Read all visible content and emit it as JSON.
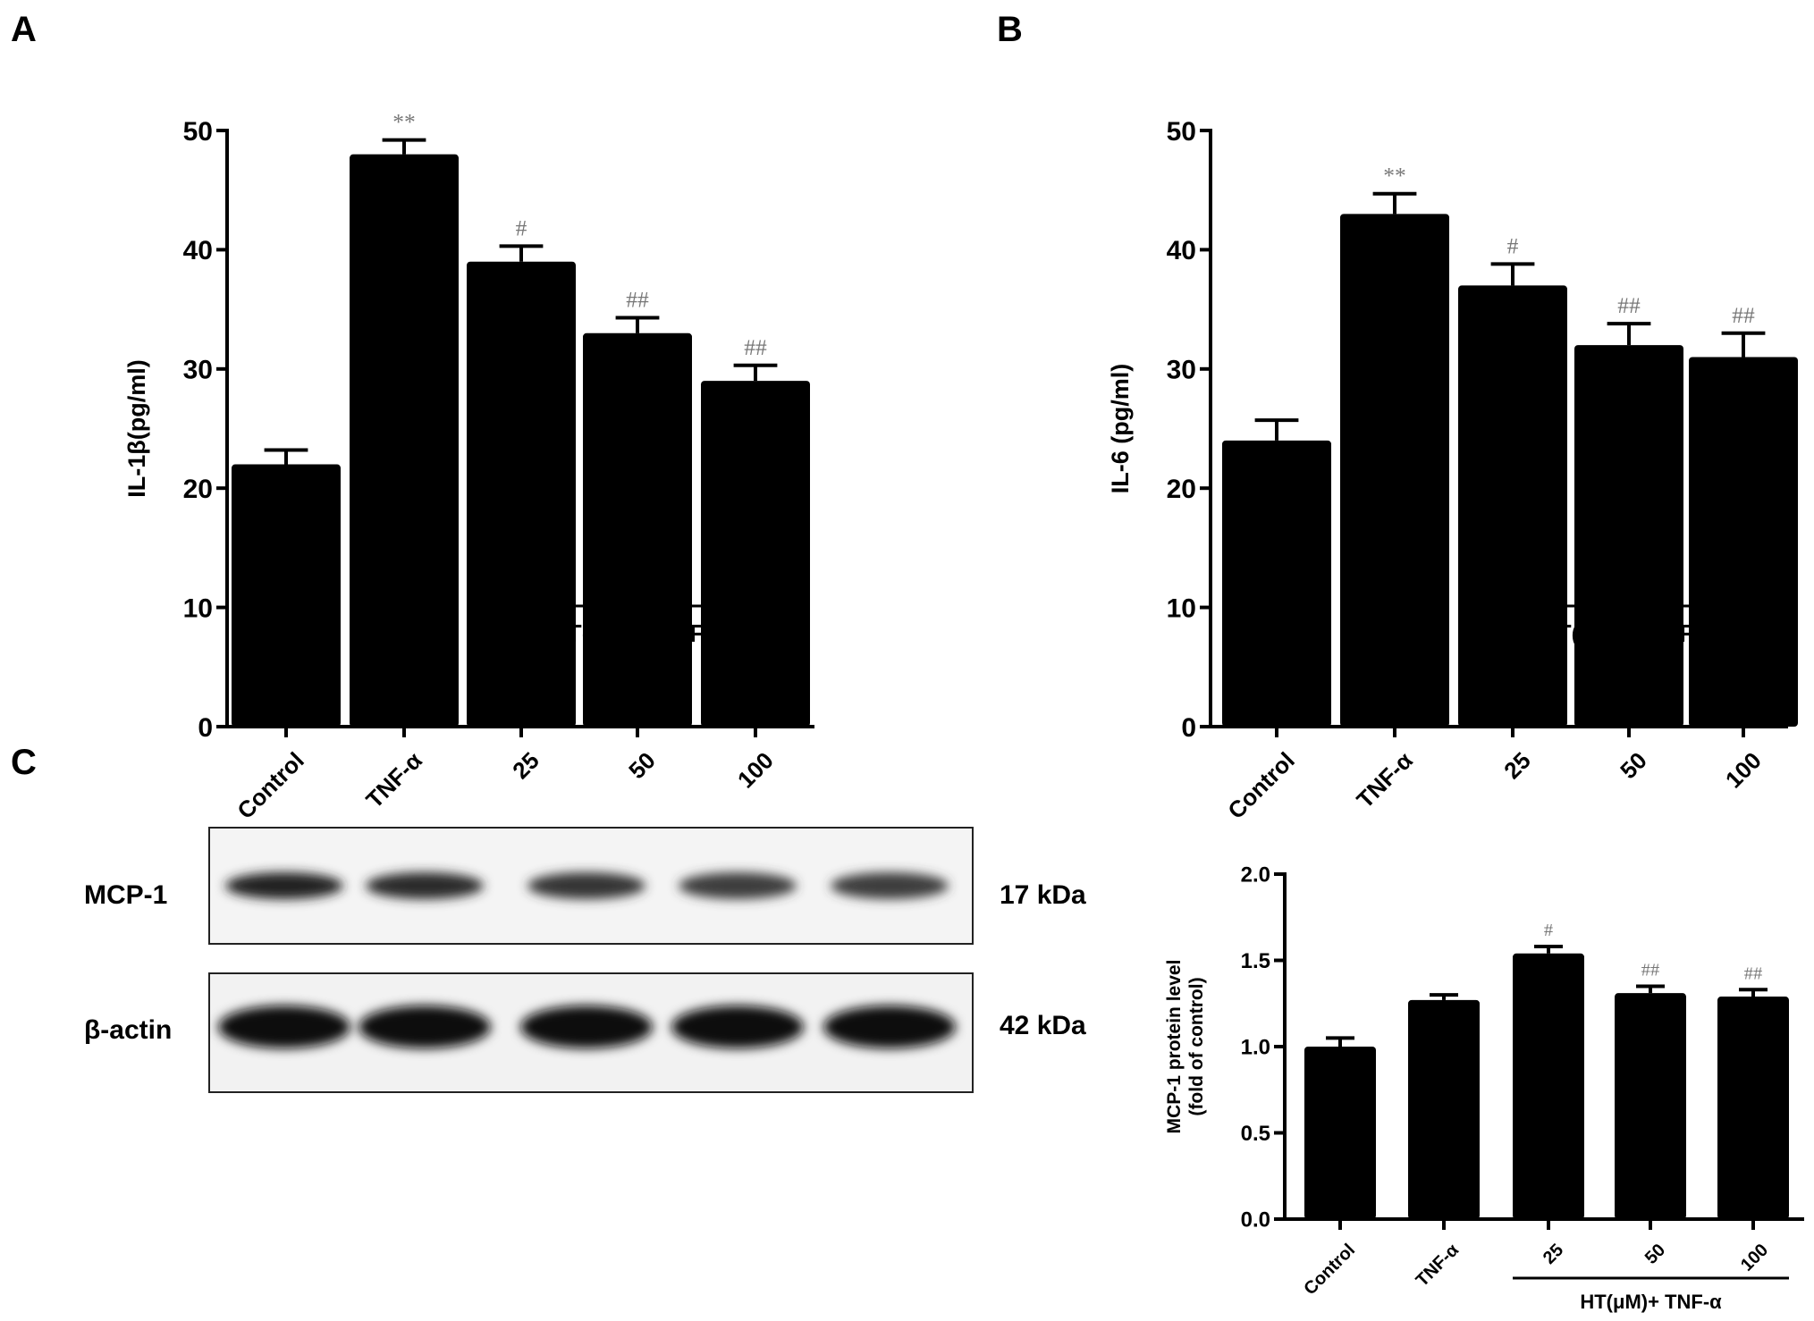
{
  "panels": {
    "a": "A",
    "b": "B",
    "c": "C"
  },
  "blot": {
    "rows": [
      {
        "label": "MCP-1",
        "size": "17 kDa"
      },
      {
        "label": "β-actin",
        "size": "42 kDa"
      }
    ],
    "mcp1_band_intensity": [
      0.95,
      0.9,
      0.8,
      0.75,
      0.75
    ]
  },
  "chart_data": [
    {
      "type": "bar",
      "ylabel": "IL-1β(pg/ml)",
      "categories": [
        "Control",
        "TNF-α",
        "25",
        "50",
        "100"
      ],
      "group_label": "HT(μM)+ TNF-α",
      "values": [
        22,
        48,
        39,
        33,
        29
      ],
      "errors": [
        1.2,
        1.2,
        1.3,
        1.3,
        1.3
      ],
      "annotations": [
        "",
        "**",
        "#",
        "##",
        "##"
      ],
      "ylim": [
        0,
        50
      ],
      "yticks": [
        "0",
        "10",
        "20",
        "30",
        "40",
        "50"
      ],
      "bar_color": "#000000",
      "annotation_color": "#777777"
    },
    {
      "type": "bar",
      "ylabel": "IL-6 (pg/ml)",
      "categories": [
        "Control",
        "TNF-α",
        "25",
        "50",
        "100"
      ],
      "group_label": "HT(μM)+ TNF-α",
      "values": [
        24,
        43,
        37,
        32,
        31
      ],
      "errors": [
        1.7,
        1.7,
        1.8,
        1.8,
        2.0
      ],
      "annotations": [
        "",
        "**",
        "#",
        "##",
        "##"
      ],
      "ylim": [
        0,
        50
      ],
      "yticks": [
        "0",
        "10",
        "20",
        "30",
        "40",
        "50"
      ],
      "bar_color": "#000000",
      "annotation_color": "#777777"
    },
    {
      "type": "bar",
      "ylabel": [
        "MCP-1 protein level",
        "(fold of control)"
      ],
      "categories": [
        "Control",
        "TNF-α",
        "25",
        "50",
        "100"
      ],
      "group_label": "HT(μM)+ TNF-α",
      "values": [
        1.0,
        1.27,
        1.54,
        1.31,
        1.29
      ],
      "errors": [
        0.05,
        0.03,
        0.04,
        0.04,
        0.04
      ],
      "annotations": [
        "",
        "",
        "#",
        "##",
        "##"
      ],
      "ylim": [
        0,
        2.0
      ],
      "yticks": [
        "0.0",
        "0.5",
        "1.0",
        "1.5",
        "2.0"
      ],
      "bar_color": "#000000",
      "annotation_color": "#777777"
    }
  ]
}
